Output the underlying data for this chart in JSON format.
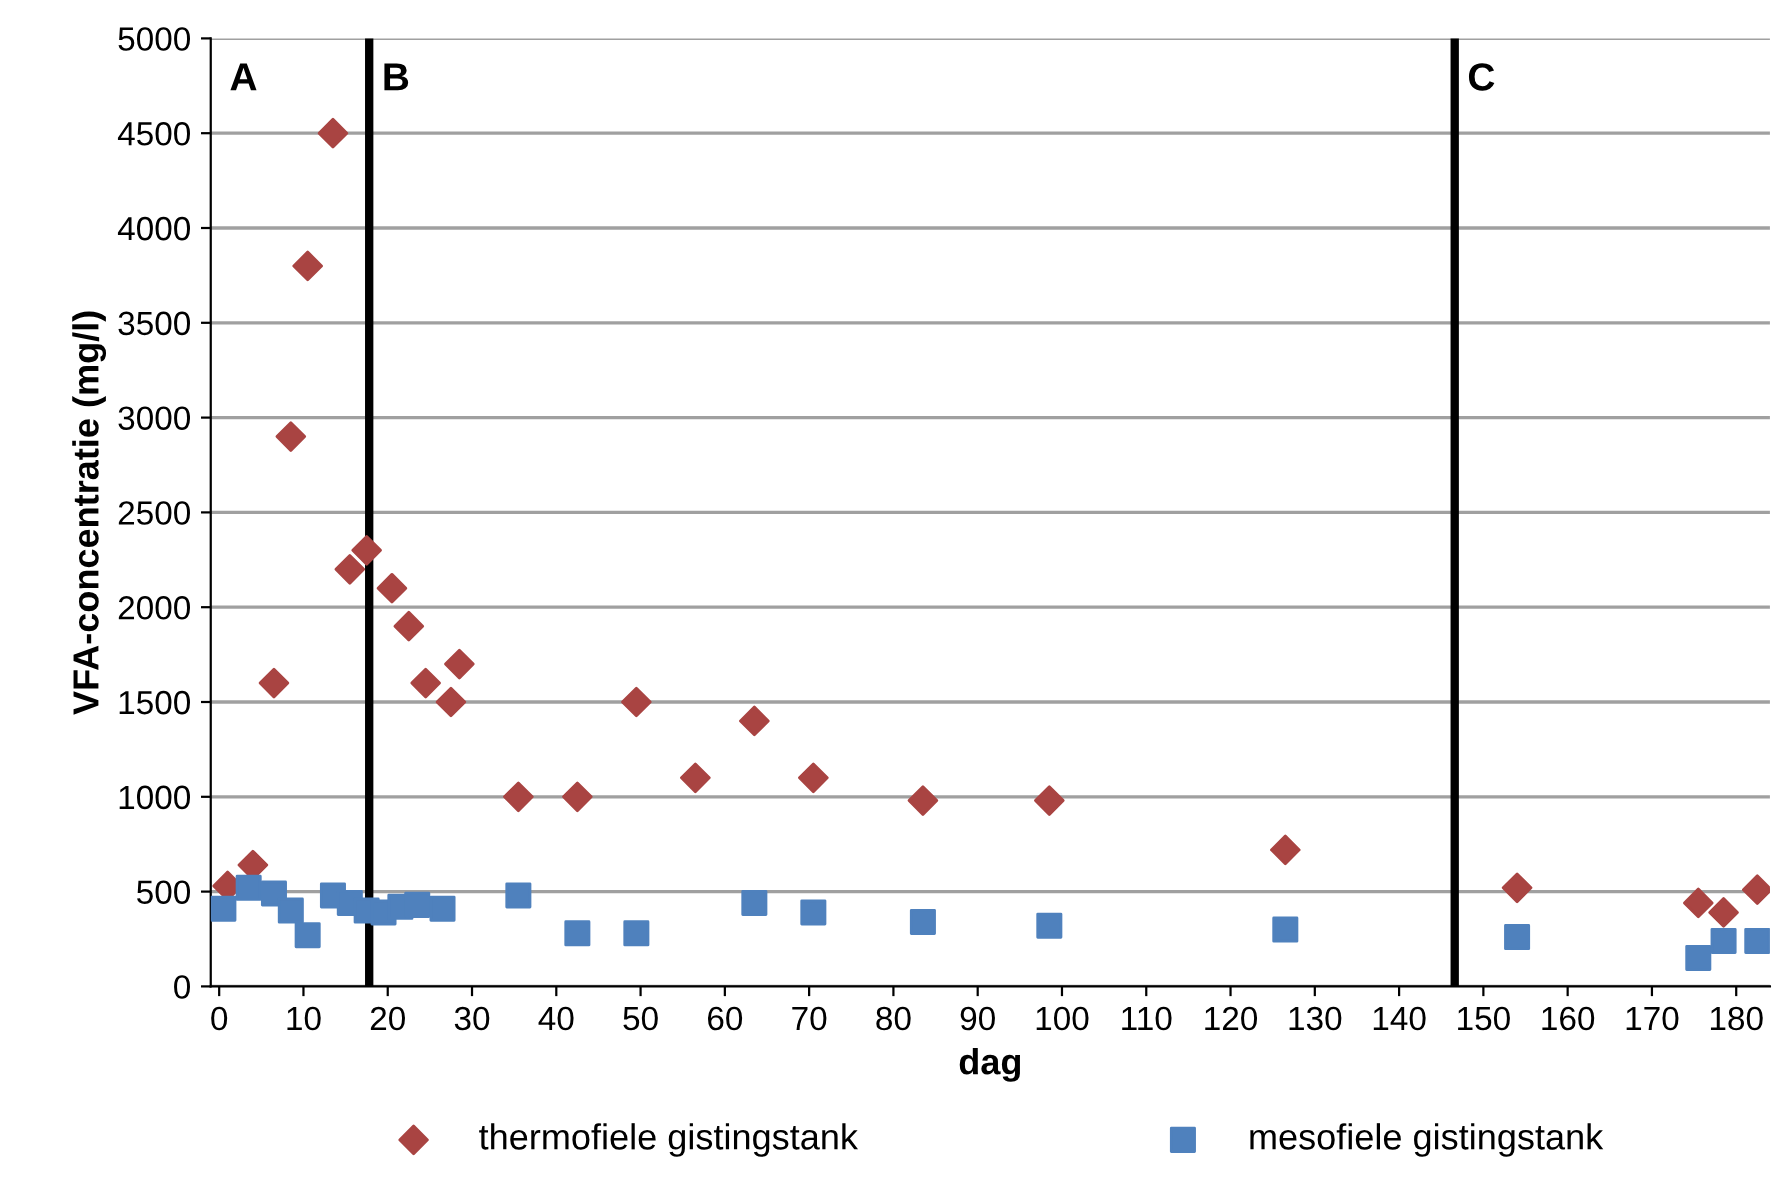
{
  "chart_data": {
    "type": "scatter",
    "xlabel": "dag",
    "ylabel": "VFA-concentratie (mg/l)",
    "xlim": [
      -1,
      184
    ],
    "xticks": [
      0,
      10,
      20,
      30,
      40,
      50,
      60,
      70,
      80,
      90,
      100,
      110,
      120,
      130,
      140,
      150,
      160,
      170,
      180
    ],
    "ylim": [
      0,
      5000
    ],
    "yticks": [
      0,
      500,
      1000,
      1500,
      2000,
      2500,
      3000,
      3500,
      4000,
      4500,
      5000
    ],
    "grid": "y",
    "legend": "bottom",
    "series": [
      {
        "name": "thermofiele gistingstank",
        "color": "#a94442",
        "marker": "diamond",
        "x": [
          1,
          4,
          6.5,
          8.5,
          10.5,
          13.5,
          15.5,
          17.5,
          20.5,
          22.5,
          24.5,
          27.5,
          28.5,
          35.5,
          42.5,
          49.5,
          56.5,
          63.5,
          70.5,
          83.5,
          98.5,
          126.5,
          154,
          175.5,
          178.5,
          182.5
        ],
        "values": [
          530,
          640,
          1600,
          2900,
          3800,
          4500,
          2200,
          2300,
          2100,
          1900,
          1600,
          1500,
          1700,
          1000,
          1000,
          1500,
          1100,
          1400,
          1100,
          980,
          980,
          720,
          520,
          440,
          390,
          510
        ]
      },
      {
        "name": "mesofiele gistingstank",
        "color": "#4f81bd",
        "marker": "square",
        "x": [
          0.5,
          3.5,
          6.5,
          8.5,
          10.5,
          13.5,
          15.5,
          17.5,
          19.5,
          21.5,
          23.5,
          26.5,
          35.5,
          42.5,
          49.5,
          63.5,
          70.5,
          83.5,
          98.5,
          126.5,
          154,
          175.5,
          178.5,
          182.5
        ],
        "values": [
          410,
          520,
          490,
          400,
          270,
          480,
          440,
          400,
          390,
          420,
          430,
          410,
          480,
          280,
          280,
          440,
          390,
          340,
          320,
          300,
          260,
          150,
          240,
          240
        ]
      }
    ],
    "ref_lines": [
      {
        "axis": "x",
        "value": 17.8,
        "label": "B",
        "color": "#000000"
      },
      {
        "axis": "x",
        "value": 146.6,
        "label": "C",
        "color": "#000000"
      }
    ],
    "annotations": [
      "A"
    ]
  }
}
